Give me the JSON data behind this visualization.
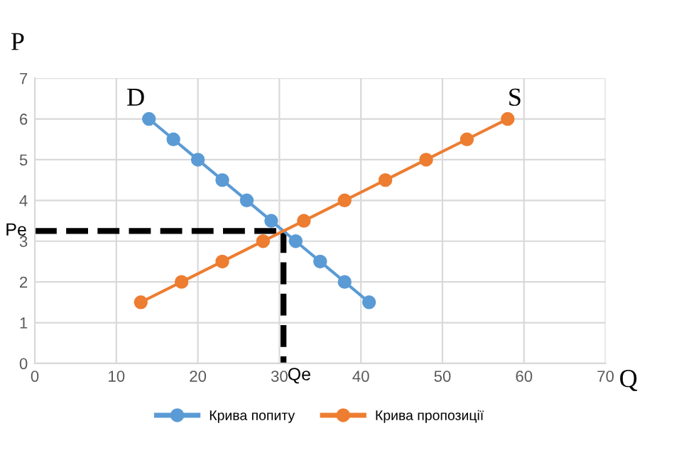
{
  "chart_data": {
    "type": "line",
    "xlabel": "Q",
    "ylabel": "P",
    "xlim": [
      0,
      70
    ],
    "ylim": [
      0,
      7
    ],
    "xticks": [
      0,
      10,
      20,
      30,
      40,
      50,
      60,
      70
    ],
    "yticks": [
      0,
      1,
      2,
      3,
      4,
      5,
      6,
      7
    ],
    "grid": true,
    "legend": "bottom",
    "marker": "circle",
    "line_style": "solid",
    "series": [
      {
        "name": "Крива попиту",
        "color": "#5b9bd5",
        "x": [
          14,
          17,
          20,
          23,
          26,
          29,
          32,
          35,
          38,
          41
        ],
        "values": [
          6,
          5.5,
          5,
          4.5,
          4,
          3.5,
          3,
          2.5,
          2,
          1.5
        ]
      },
      {
        "name": "Крива пропозиції",
        "color": "#ed7d31",
        "x": [
          13,
          18,
          23,
          28,
          33,
          38,
          43,
          48,
          53,
          58
        ],
        "values": [
          1.5,
          2,
          2.5,
          3,
          3.5,
          4,
          4.5,
          5,
          5.5,
          6
        ]
      },
      {
        "color": "#000000",
        "x": [
          0,
          30.5
        ],
        "values": [
          3.25,
          3.25
        ],
        "line_style": "dashed",
        "marker": "none"
      },
      {
        "color": "#000000",
        "x": [
          30.5,
          30.5
        ],
        "values": [
          3.25,
          0
        ],
        "line_style": "dashed",
        "marker": "none"
      }
    ],
    "annotations": [
      {
        "text": "D",
        "x": 14,
        "y": 6
      },
      {
        "text": "S",
        "x": 58,
        "y": 6
      },
      {
        "text": "Pe",
        "x": 0,
        "y": 3.25
      },
      {
        "text": "Qe",
        "x": 30.5,
        "y": 0
      }
    ]
  }
}
